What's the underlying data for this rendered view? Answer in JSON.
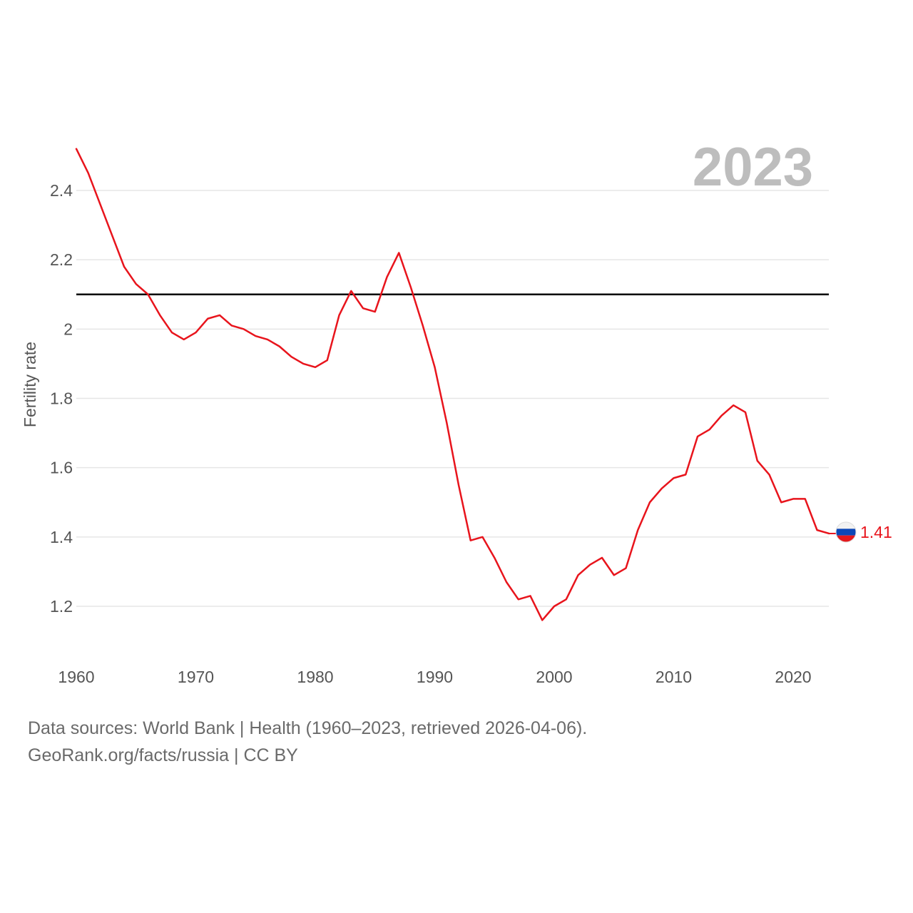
{
  "chart_data": {
    "type": "line",
    "title": "",
    "year_label": "2023",
    "xlabel": "",
    "ylabel": "Fertility rate",
    "xlim": [
      1960,
      2023
    ],
    "ylim": [
      1.1,
      2.5
    ],
    "x_ticks": [
      1960,
      1970,
      1980,
      1990,
      2000,
      2010,
      2020
    ],
    "x_tick_labels": [
      "1960",
      "1970",
      "1980",
      "1990",
      "2000",
      "2010",
      "2020"
    ],
    "y_ticks": [
      1.2,
      1.4,
      1.6,
      1.8,
      2.0,
      2.2,
      2.4
    ],
    "y_tick_labels": [
      "1.2",
      "1.4",
      "1.6",
      "1.8",
      "2",
      "2.2",
      "2.4"
    ],
    "grid": true,
    "reference_line": {
      "y": 2.1,
      "color": "#000000"
    },
    "series": [
      {
        "name": "Russia",
        "color": "#e8141c",
        "end_label": "1.41",
        "flag": "russia-flag",
        "x": [
          1960,
          1961,
          1962,
          1963,
          1964,
          1965,
          1966,
          1967,
          1968,
          1969,
          1970,
          1971,
          1972,
          1973,
          1974,
          1975,
          1976,
          1977,
          1978,
          1979,
          1980,
          1981,
          1982,
          1983,
          1984,
          1985,
          1986,
          1987,
          1988,
          1989,
          1990,
          1991,
          1992,
          1993,
          1994,
          1995,
          1996,
          1997,
          1998,
          1999,
          2000,
          2001,
          2002,
          2003,
          2004,
          2005,
          2006,
          2007,
          2008,
          2009,
          2010,
          2011,
          2012,
          2013,
          2014,
          2015,
          2016,
          2017,
          2018,
          2019,
          2020,
          2021,
          2022,
          2023
        ],
        "values": [
          2.52,
          2.45,
          2.36,
          2.27,
          2.18,
          2.13,
          2.1,
          2.04,
          1.99,
          1.97,
          1.99,
          2.03,
          2.04,
          2.01,
          2.0,
          1.98,
          1.97,
          1.95,
          1.92,
          1.9,
          1.89,
          1.91,
          2.04,
          2.11,
          2.06,
          2.05,
          2.15,
          2.22,
          2.12,
          2.01,
          1.89,
          1.73,
          1.55,
          1.39,
          1.4,
          1.34,
          1.27,
          1.22,
          1.23,
          1.16,
          1.2,
          1.22,
          1.29,
          1.32,
          1.34,
          1.29,
          1.31,
          1.42,
          1.5,
          1.54,
          1.57,
          1.58,
          1.69,
          1.71,
          1.75,
          1.78,
          1.76,
          1.62,
          1.58,
          1.5,
          1.51,
          1.51,
          1.42,
          1.41
        ]
      }
    ]
  },
  "footer": {
    "sources": "Data sources: World Bank | Health (1960–2023, retrieved 2026-04-06).",
    "credit": "GeoRank.org/facts/russia | CC BY"
  }
}
